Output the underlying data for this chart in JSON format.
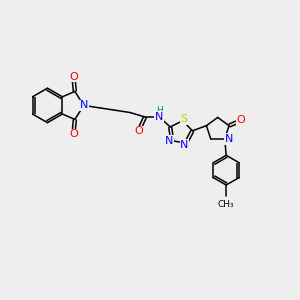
{
  "bg_color": "#eeeeee",
  "figsize": [
    3.0,
    3.0
  ],
  "dpi": 100,
  "atom_colors": {
    "O": "#ff0000",
    "N": "#0000ff",
    "S": "#cccc00",
    "H": "#008b8b",
    "C": "#000000"
  }
}
